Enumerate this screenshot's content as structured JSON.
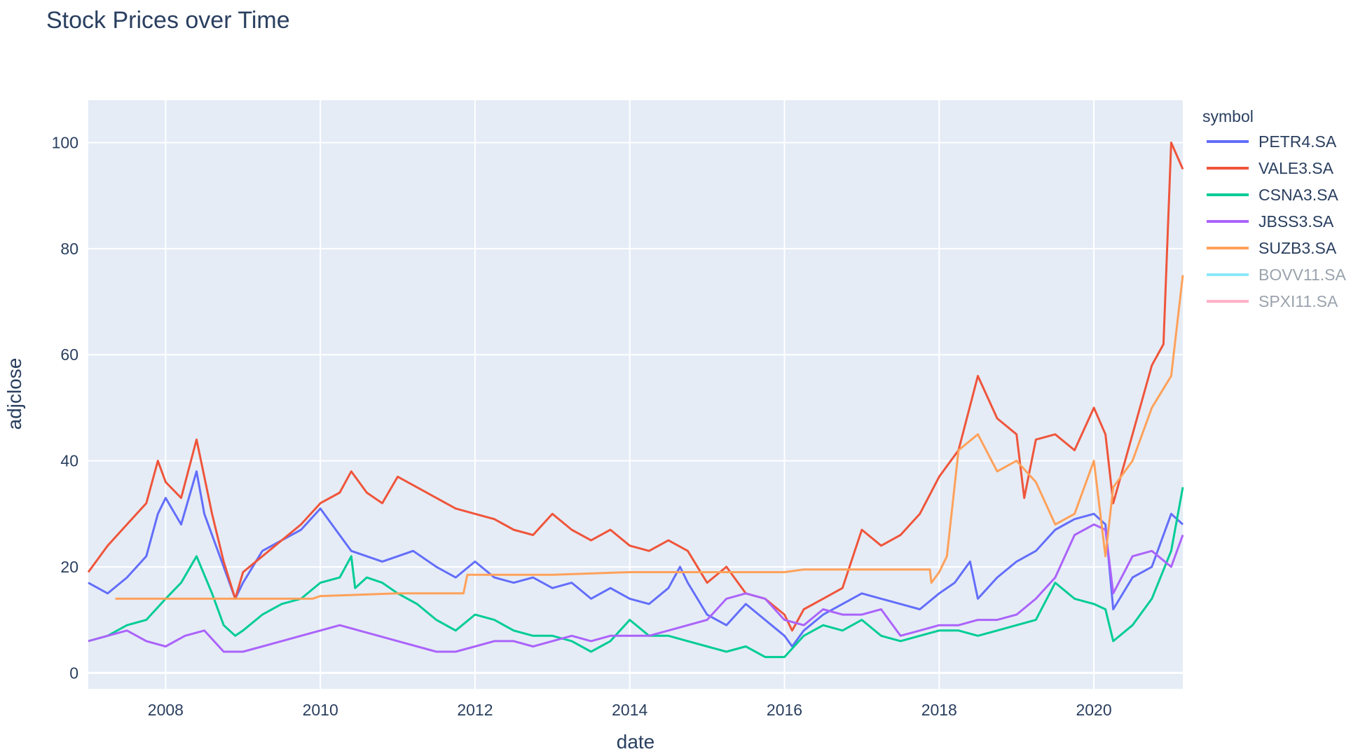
{
  "chart_data": {
    "type": "line",
    "title": "Stock Prices over Time",
    "xlabel": "date",
    "ylabel": "adjclose",
    "xlim": [
      2007.0,
      2021.15
    ],
    "ylim": [
      -3,
      108
    ],
    "x_ticks": [
      2008,
      2010,
      2012,
      2014,
      2016,
      2018,
      2020
    ],
    "x_tick_labels": [
      "2008",
      "2010",
      "2012",
      "2014",
      "2016",
      "2018",
      "2020"
    ],
    "y_ticks": [
      0,
      20,
      40,
      60,
      80,
      100
    ],
    "y_tick_labels": [
      "0",
      "20",
      "40",
      "60",
      "80",
      "100"
    ],
    "grid": true,
    "legend": {
      "title": "symbol",
      "placement": "right"
    },
    "series": [
      {
        "name": "PETR4.SA",
        "color": "#636efa",
        "visible": true,
        "x": [
          2007.0,
          2007.25,
          2007.5,
          2007.75,
          2007.9,
          2008.0,
          2008.2,
          2008.4,
          2008.5,
          2008.6,
          2008.75,
          2008.9,
          2009.0,
          2009.25,
          2009.5,
          2009.75,
          2010.0,
          2010.2,
          2010.4,
          2010.6,
          2010.8,
          2011.0,
          2011.2,
          2011.5,
          2011.75,
          2012.0,
          2012.25,
          2012.5,
          2012.75,
          2013.0,
          2013.25,
          2013.5,
          2013.75,
          2014.0,
          2014.25,
          2014.5,
          2014.65,
          2014.75,
          2015.0,
          2015.25,
          2015.5,
          2015.75,
          2016.0,
          2016.1,
          2016.25,
          2016.5,
          2016.75,
          2017.0,
          2017.25,
          2017.5,
          2017.75,
          2018.0,
          2018.2,
          2018.4,
          2018.5,
          2018.75,
          2019.0,
          2019.25,
          2019.5,
          2019.75,
          2020.0,
          2020.15,
          2020.25,
          2020.5,
          2020.75,
          2021.0,
          2021.15
        ],
        "y": [
          17,
          15,
          18,
          22,
          30,
          33,
          28,
          38,
          30,
          26,
          20,
          14,
          17,
          23,
          25,
          27,
          31,
          27,
          23,
          22,
          21,
          22,
          23,
          20,
          18,
          21,
          18,
          17,
          18,
          16,
          17,
          14,
          16,
          14,
          13,
          16,
          20,
          17,
          11,
          9,
          13,
          10,
          7,
          5,
          8,
          11,
          13,
          15,
          14,
          13,
          12,
          15,
          17,
          21,
          14,
          18,
          21,
          23,
          27,
          29,
          30,
          28,
          12,
          18,
          20,
          30,
          28
        ]
      },
      {
        "name": "VALE3.SA",
        "color": "#ef553b",
        "visible": true,
        "x": [
          2007.0,
          2007.25,
          2007.5,
          2007.75,
          2007.9,
          2008.0,
          2008.2,
          2008.4,
          2008.5,
          2008.6,
          2008.75,
          2008.9,
          2009.0,
          2009.25,
          2009.5,
          2009.75,
          2010.0,
          2010.25,
          2010.4,
          2010.6,
          2010.8,
          2011.0,
          2011.25,
          2011.5,
          2011.75,
          2012.0,
          2012.25,
          2012.5,
          2012.75,
          2013.0,
          2013.25,
          2013.5,
          2013.75,
          2014.0,
          2014.25,
          2014.5,
          2014.75,
          2015.0,
          2015.25,
          2015.5,
          2015.75,
          2016.0,
          2016.1,
          2016.25,
          2016.5,
          2016.75,
          2017.0,
          2017.25,
          2017.5,
          2017.75,
          2018.0,
          2018.25,
          2018.5,
          2018.75,
          2019.0,
          2019.1,
          2019.25,
          2019.5,
          2019.75,
          2020.0,
          2020.15,
          2020.25,
          2020.5,
          2020.75,
          2020.9,
          2021.0,
          2021.15
        ],
        "y": [
          19,
          24,
          28,
          32,
          40,
          36,
          33,
          44,
          37,
          30,
          21,
          14,
          19,
          22,
          25,
          28,
          32,
          34,
          38,
          34,
          32,
          37,
          35,
          33,
          31,
          30,
          29,
          27,
          26,
          30,
          27,
          25,
          27,
          24,
          23,
          25,
          23,
          17,
          20,
          15,
          14,
          11,
          8,
          12,
          14,
          16,
          27,
          24,
          26,
          30,
          37,
          42,
          56,
          48,
          45,
          33,
          44,
          45,
          42,
          50,
          45,
          32,
          45,
          58,
          62,
          100,
          95
        ]
      },
      {
        "name": "CSNA3.SA",
        "color": "#00cc96",
        "visible": true,
        "x": [
          2007.0,
          2007.25,
          2007.5,
          2007.75,
          2008.0,
          2008.2,
          2008.4,
          2008.6,
          2008.75,
          2008.9,
          2009.0,
          2009.25,
          2009.5,
          2009.75,
          2010.0,
          2010.25,
          2010.4,
          2010.45,
          2010.6,
          2010.8,
          2011.0,
          2011.25,
          2011.5,
          2011.75,
          2012.0,
          2012.25,
          2012.5,
          2012.75,
          2013.0,
          2013.25,
          2013.5,
          2013.75,
          2014.0,
          2014.25,
          2014.5,
          2014.75,
          2015.0,
          2015.25,
          2015.5,
          2015.75,
          2016.0,
          2016.25,
          2016.5,
          2016.75,
          2017.0,
          2017.25,
          2017.5,
          2017.75,
          2018.0,
          2018.25,
          2018.5,
          2018.75,
          2019.0,
          2019.25,
          2019.5,
          2019.75,
          2020.0,
          2020.15,
          2020.25,
          2020.5,
          2020.75,
          2021.0,
          2021.15
        ],
        "y": [
          6,
          7,
          9,
          10,
          14,
          17,
          22,
          15,
          9,
          7,
          8,
          11,
          13,
          14,
          17,
          18,
          22,
          16,
          18,
          17,
          15,
          13,
          10,
          8,
          11,
          10,
          8,
          7,
          7,
          6,
          4,
          6,
          10,
          7,
          7,
          6,
          5,
          4,
          5,
          3,
          3,
          7,
          9,
          8,
          10,
          7,
          6,
          7,
          8,
          8,
          7,
          8,
          9,
          10,
          17,
          14,
          13,
          12,
          6,
          9,
          14,
          23,
          35
        ]
      },
      {
        "name": "JBSS3.SA",
        "color": "#ab63fa",
        "visible": true,
        "x": [
          2007.0,
          2007.25,
          2007.5,
          2007.75,
          2008.0,
          2008.25,
          2008.5,
          2008.75,
          2009.0,
          2009.25,
          2009.5,
          2009.75,
          2010.0,
          2010.25,
          2010.5,
          2010.75,
          2011.0,
          2011.25,
          2011.5,
          2011.75,
          2012.0,
          2012.25,
          2012.5,
          2012.75,
          2013.0,
          2013.25,
          2013.5,
          2013.75,
          2014.0,
          2014.25,
          2014.5,
          2014.75,
          2015.0,
          2015.25,
          2015.5,
          2015.75,
          2016.0,
          2016.25,
          2016.5,
          2016.75,
          2017.0,
          2017.25,
          2017.5,
          2017.75,
          2018.0,
          2018.25,
          2018.5,
          2018.75,
          2019.0,
          2019.25,
          2019.5,
          2019.75,
          2020.0,
          2020.15,
          2020.25,
          2020.5,
          2020.75,
          2021.0,
          2021.15
        ],
        "y": [
          6,
          7,
          8,
          6,
          5,
          7,
          8,
          4,
          4,
          5,
          6,
          7,
          8,
          9,
          8,
          7,
          6,
          5,
          4,
          4,
          5,
          6,
          6,
          5,
          6,
          7,
          6,
          7,
          7,
          7,
          8,
          9,
          10,
          14,
          15,
          14,
          10,
          9,
          12,
          11,
          11,
          12,
          7,
          8,
          9,
          9,
          10,
          10,
          11,
          14,
          18,
          26,
          28,
          27,
          15,
          22,
          23,
          20,
          26
        ]
      },
      {
        "name": "SUZB3.SA",
        "color": "#ffa15a",
        "visible": true,
        "x": [
          2007.35,
          2008.0,
          2009.0,
          2009.9,
          2010.0,
          2011.0,
          2011.85,
          2011.9,
          2012.5,
          2013.0,
          2014.0,
          2015.0,
          2016.0,
          2016.25,
          2017.0,
          2017.88,
          2017.9,
          2018.0,
          2018.1,
          2018.25,
          2018.5,
          2018.75,
          2019.0,
          2019.25,
          2019.5,
          2019.75,
          2020.0,
          2020.15,
          2020.25,
          2020.5,
          2020.75,
          2021.0,
          2021.15
        ],
        "y": [
          14,
          14,
          14,
          14,
          14.5,
          15,
          15,
          18.5,
          18.5,
          18.5,
          19,
          19,
          19,
          19.5,
          19.5,
          19.5,
          17,
          19,
          22,
          42,
          45,
          38,
          40,
          36,
          28,
          30,
          40,
          22,
          35,
          40,
          50,
          56,
          75
        ]
      },
      {
        "name": "BOVV11.SA",
        "color": "#19d3f3",
        "visible": false,
        "x": [],
        "y": []
      },
      {
        "name": "SPXI11.SA",
        "color": "#ff6692",
        "visible": false,
        "x": [],
        "y": []
      }
    ]
  }
}
